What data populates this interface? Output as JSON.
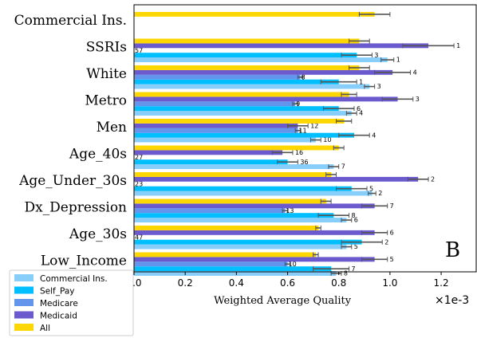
{
  "chart_data": {
    "type": "bar",
    "orientation": "horizontal",
    "categories": [
      "Commercial Ins.",
      "SSRIs",
      "White",
      "Metro",
      "Men",
      "Age_40s",
      "Age_Under_30s",
      "Dx_Depression",
      "Age_30s",
      "Low_Income"
    ],
    "xlabel": "Weighted Average Quality",
    "x_scale_label": "×1e-3",
    "xlim": [
      0,
      1.34
    ],
    "xticks": [
      "0.0",
      "0.2",
      "0.4",
      "0.6",
      "0.8",
      "1.0",
      "1.2"
    ],
    "panel_label": "B",
    "legend_position": "lower-left outside",
    "series": [
      {
        "name": "Commercial Ins.",
        "color": "#87cefa",
        "values": [
          null,
          0.99,
          0.92,
          0.85,
          0.71,
          0.78,
          0.93,
          0.83,
          0.83,
          0.79
        ],
        "errors": [
          null,
          0.025,
          0.02,
          0.02,
          0.02,
          0.02,
          0.015,
          0.02,
          0.02,
          0.02
        ],
        "annotations": [
          null,
          "1",
          "3",
          "4",
          "10",
          "7",
          "2",
          "6",
          "5",
          "8"
        ]
      },
      {
        "name": "Self_Pay",
        "color": "#00bfff",
        "values": [
          null,
          0.87,
          0.8,
          0.8,
          0.86,
          0.6,
          0.85,
          0.78,
          0.89,
          0.77
        ],
        "errors": [
          null,
          0.06,
          0.07,
          0.06,
          0.06,
          0.04,
          0.06,
          0.06,
          0.08,
          0.07
        ],
        "annotations": [
          null,
          "3",
          "1",
          "6",
          "4",
          "36",
          "5",
          "8",
          "2",
          "7"
        ]
      },
      {
        "name": "Medicare",
        "color": "#6495ed",
        "values": [
          null,
          null,
          0.65,
          0.63,
          0.64,
          null,
          null,
          0.59,
          null,
          0.6
        ],
        "errors": [
          null,
          null,
          0.01,
          0.01,
          0.01,
          null,
          null,
          0.01,
          null,
          0.01
        ],
        "annotations": [
          null,
          "57",
          "8",
          "9",
          "11",
          "27",
          "23",
          "13",
          "47",
          "10"
        ]
      },
      {
        "name": "Medicaid",
        "color": "#6a5acd",
        "values": [
          null,
          1.15,
          1.01,
          1.03,
          0.64,
          0.58,
          1.11,
          0.94,
          0.94,
          0.94
        ],
        "errors": [
          null,
          0.1,
          0.07,
          0.06,
          0.04,
          0.04,
          0.04,
          0.05,
          0.05,
          0.05
        ],
        "annotations": [
          null,
          "1",
          "4",
          "3",
          "12",
          "16",
          "2",
          "7",
          "6",
          "5"
        ]
      },
      {
        "name": "All",
        "color": "#ffd700",
        "values": [
          0.94,
          0.88,
          0.88,
          0.84,
          0.82,
          0.8,
          0.77,
          0.75,
          0.72,
          0.71
        ],
        "errors": [
          0.06,
          0.04,
          0.04,
          0.03,
          0.03,
          0.02,
          0.02,
          0.02,
          0.01,
          0.01
        ],
        "annotations": [
          null,
          null,
          null,
          null,
          null,
          null,
          null,
          null,
          null,
          null
        ]
      }
    ]
  }
}
